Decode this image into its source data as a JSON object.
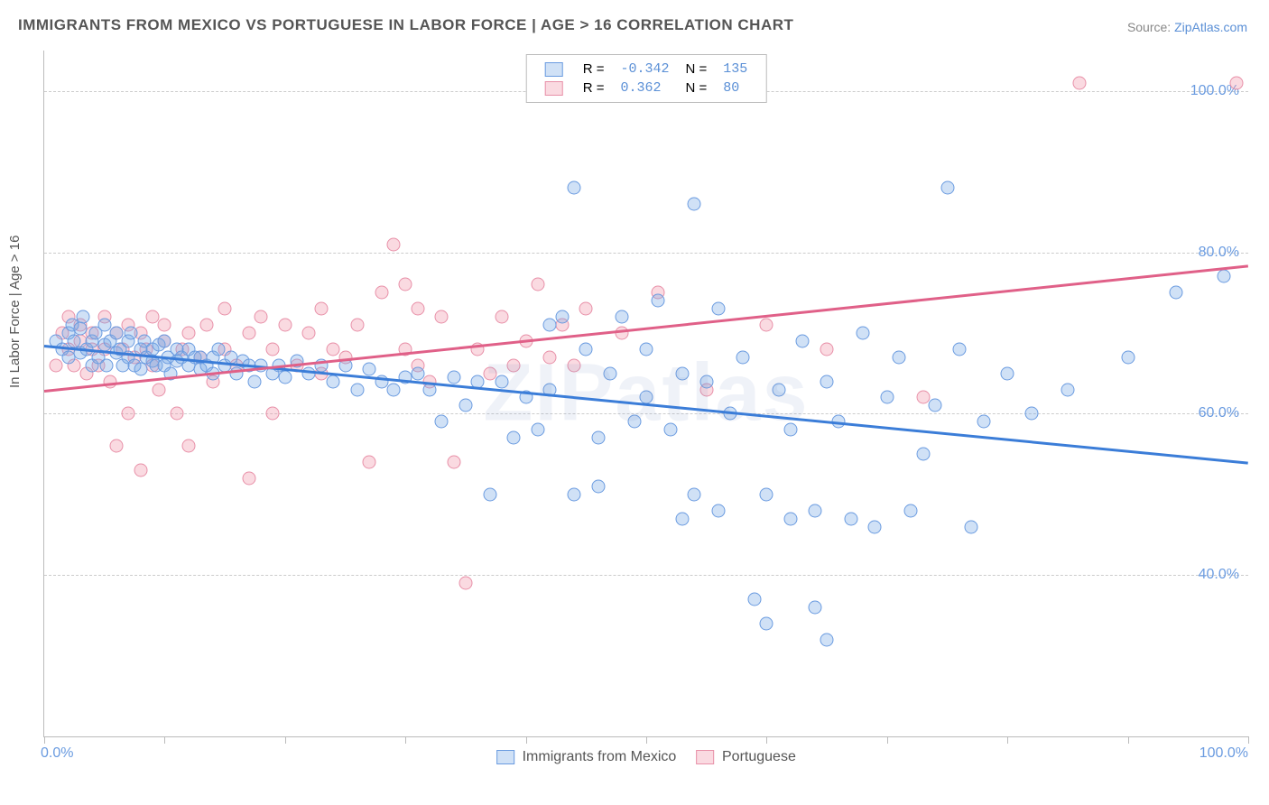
{
  "title": "IMMIGRANTS FROM MEXICO VS PORTUGUESE IN LABOR FORCE | AGE > 16 CORRELATION CHART",
  "source_prefix": "Source: ",
  "source_link": "ZipAtlas.com",
  "yaxis_label": "In Labor Force | Age > 16",
  "watermark": "ZIPatlas",
  "chart": {
    "type": "scatter",
    "xlim": [
      0,
      100
    ],
    "ylim": [
      20,
      105
    ],
    "yticks": [
      40,
      60,
      80,
      100
    ],
    "ytick_labels": [
      "40.0%",
      "60.0%",
      "80.0%",
      "100.0%"
    ],
    "xtick_positions": [
      0,
      10,
      20,
      30,
      40,
      50,
      60,
      70,
      80,
      90,
      100
    ],
    "xlabel_min": "0.0%",
    "xlabel_max": "100.0%",
    "background_color": "#ffffff",
    "grid_color": "#cccccc",
    "series": [
      {
        "id": "mexico",
        "label": "Immigrants from Mexico",
        "fill": "rgba(120,170,230,0.35)",
        "stroke": "#6a9be0",
        "R": "-0.342",
        "N": "135",
        "trend": {
          "x1": 0,
          "y1": 68.5,
          "x2": 100,
          "y2": 54,
          "color": "#3b7dd8"
        },
        "points": [
          [
            1,
            69
          ],
          [
            1.5,
            68
          ],
          [
            2,
            70
          ],
          [
            2,
            67
          ],
          [
            2.3,
            71
          ],
          [
            2.5,
            69
          ],
          [
            3,
            70.5
          ],
          [
            3,
            67.5
          ],
          [
            3.2,
            72
          ],
          [
            3.5,
            68
          ],
          [
            4,
            69
          ],
          [
            4,
            66
          ],
          [
            4.3,
            70
          ],
          [
            4.5,
            67
          ],
          [
            5,
            68.5
          ],
          [
            5,
            71
          ],
          [
            5.2,
            66
          ],
          [
            5.5,
            69
          ],
          [
            6,
            67.5
          ],
          [
            6,
            70
          ],
          [
            6.3,
            68
          ],
          [
            6.5,
            66
          ],
          [
            7,
            69
          ],
          [
            7,
            67
          ],
          [
            7.2,
            70
          ],
          [
            7.5,
            66
          ],
          [
            8,
            68
          ],
          [
            8,
            65.5
          ],
          [
            8.3,
            69
          ],
          [
            8.5,
            67
          ],
          [
            9,
            66.5
          ],
          [
            9,
            68
          ],
          [
            9.3,
            66
          ],
          [
            9.5,
            68.5
          ],
          [
            10,
            66
          ],
          [
            10,
            69
          ],
          [
            10.3,
            67
          ],
          [
            10.5,
            65
          ],
          [
            11,
            68
          ],
          [
            11,
            66.5
          ],
          [
            11.4,
            67
          ],
          [
            12,
            66
          ],
          [
            12,
            68
          ],
          [
            12.5,
            67
          ],
          [
            13,
            65.5
          ],
          [
            13,
            67
          ],
          [
            13.5,
            66
          ],
          [
            14,
            67
          ],
          [
            14,
            65
          ],
          [
            14.5,
            68
          ],
          [
            15,
            66
          ],
          [
            15.5,
            67
          ],
          [
            16,
            65
          ],
          [
            16.5,
            66.5
          ],
          [
            17,
            66
          ],
          [
            17.5,
            64
          ],
          [
            18,
            66
          ],
          [
            19,
            65
          ],
          [
            19.5,
            66
          ],
          [
            20,
            64.5
          ],
          [
            21,
            66.5
          ],
          [
            22,
            65
          ],
          [
            23,
            66
          ],
          [
            24,
            64
          ],
          [
            25,
            66
          ],
          [
            26,
            63
          ],
          [
            27,
            65.5
          ],
          [
            28,
            64
          ],
          [
            29,
            63
          ],
          [
            30,
            64.5
          ],
          [
            31,
            65
          ],
          [
            32,
            63
          ],
          [
            33,
            59
          ],
          [
            34,
            64.5
          ],
          [
            35,
            61
          ],
          [
            36,
            64
          ],
          [
            37,
            50
          ],
          [
            38,
            64
          ],
          [
            39,
            57
          ],
          [
            40,
            62
          ],
          [
            41,
            58
          ],
          [
            42,
            63
          ],
          [
            42,
            71
          ],
          [
            43,
            72
          ],
          [
            44,
            88
          ],
          [
            44,
            50
          ],
          [
            45,
            68
          ],
          [
            46,
            51
          ],
          [
            46,
            57
          ],
          [
            47,
            65
          ],
          [
            48,
            72
          ],
          [
            49,
            59
          ],
          [
            50,
            62
          ],
          [
            50,
            68
          ],
          [
            51,
            74
          ],
          [
            52,
            58
          ],
          [
            53,
            47
          ],
          [
            53,
            65
          ],
          [
            54,
            86
          ],
          [
            54,
            50
          ],
          [
            55,
            64
          ],
          [
            56,
            73
          ],
          [
            56,
            48
          ],
          [
            57,
            60
          ],
          [
            58,
            67
          ],
          [
            59,
            37
          ],
          [
            60,
            50
          ],
          [
            60,
            34
          ],
          [
            61,
            63
          ],
          [
            62,
            47
          ],
          [
            62,
            58
          ],
          [
            63,
            69
          ],
          [
            64,
            36
          ],
          [
            64,
            48
          ],
          [
            65,
            64
          ],
          [
            65,
            32
          ],
          [
            66,
            59
          ],
          [
            67,
            47
          ],
          [
            68,
            70
          ],
          [
            69,
            46
          ],
          [
            70,
            62
          ],
          [
            71,
            67
          ],
          [
            72,
            48
          ],
          [
            73,
            55
          ],
          [
            74,
            61
          ],
          [
            75,
            88
          ],
          [
            76,
            68
          ],
          [
            77,
            46
          ],
          [
            78,
            59
          ],
          [
            80,
            65
          ],
          [
            82,
            60
          ],
          [
            85,
            63
          ],
          [
            90,
            67
          ],
          [
            94,
            75
          ],
          [
            98,
            77
          ]
        ]
      },
      {
        "id": "portuguese",
        "label": "Portuguese",
        "fill": "rgba(240,150,170,0.35)",
        "stroke": "#e890a8",
        "R": "0.362",
        "N": "80",
        "trend": {
          "x1": 0,
          "y1": 63,
          "x2": 100,
          "y2": 78.5,
          "color": "#e06088"
        },
        "points": [
          [
            1,
            66
          ],
          [
            1.5,
            70
          ],
          [
            2,
            68
          ],
          [
            2,
            72
          ],
          [
            2.5,
            66
          ],
          [
            3,
            69
          ],
          [
            3,
            71
          ],
          [
            3.5,
            65
          ],
          [
            4,
            68
          ],
          [
            4,
            70
          ],
          [
            4.5,
            66
          ],
          [
            5,
            72
          ],
          [
            5,
            68
          ],
          [
            5.5,
            64
          ],
          [
            6,
            70
          ],
          [
            6,
            56
          ],
          [
            6.5,
            68
          ],
          [
            7,
            71
          ],
          [
            7,
            60
          ],
          [
            7.5,
            67
          ],
          [
            8,
            70
          ],
          [
            8,
            53
          ],
          [
            8.5,
            68
          ],
          [
            9,
            72
          ],
          [
            9,
            66
          ],
          [
            9.5,
            63
          ],
          [
            10,
            69
          ],
          [
            10,
            71
          ],
          [
            11,
            60
          ],
          [
            11.5,
            68
          ],
          [
            12,
            70
          ],
          [
            12,
            56
          ],
          [
            13,
            67
          ],
          [
            13.5,
            71
          ],
          [
            14,
            64
          ],
          [
            15,
            68
          ],
          [
            15,
            73
          ],
          [
            16,
            66
          ],
          [
            17,
            70
          ],
          [
            17,
            52
          ],
          [
            18,
            72
          ],
          [
            19,
            68
          ],
          [
            19,
            60
          ],
          [
            20,
            71
          ],
          [
            21,
            66
          ],
          [
            22,
            70
          ],
          [
            23,
            65
          ],
          [
            23,
            73
          ],
          [
            24,
            68
          ],
          [
            25,
            67
          ],
          [
            26,
            71
          ],
          [
            27,
            54
          ],
          [
            28,
            75
          ],
          [
            29,
            81
          ],
          [
            30,
            68
          ],
          [
            31,
            66
          ],
          [
            31,
            73
          ],
          [
            32,
            64
          ],
          [
            33,
            72
          ],
          [
            34,
            54
          ],
          [
            35,
            39
          ],
          [
            36,
            68
          ],
          [
            37,
            65
          ],
          [
            38,
            72
          ],
          [
            39,
            66
          ],
          [
            40,
            69
          ],
          [
            41,
            76
          ],
          [
            42,
            67
          ],
          [
            43,
            71
          ],
          [
            44,
            66
          ],
          [
            45,
            73
          ],
          [
            48,
            70
          ],
          [
            51,
            75
          ],
          [
            55,
            63
          ],
          [
            60,
            71
          ],
          [
            65,
            68
          ],
          [
            73,
            62
          ],
          [
            86,
            101
          ],
          [
            99,
            101
          ],
          [
            30,
            76
          ]
        ]
      }
    ]
  },
  "legend_top_headers": {
    "R_prefix": "R =",
    "N_prefix": "N ="
  }
}
